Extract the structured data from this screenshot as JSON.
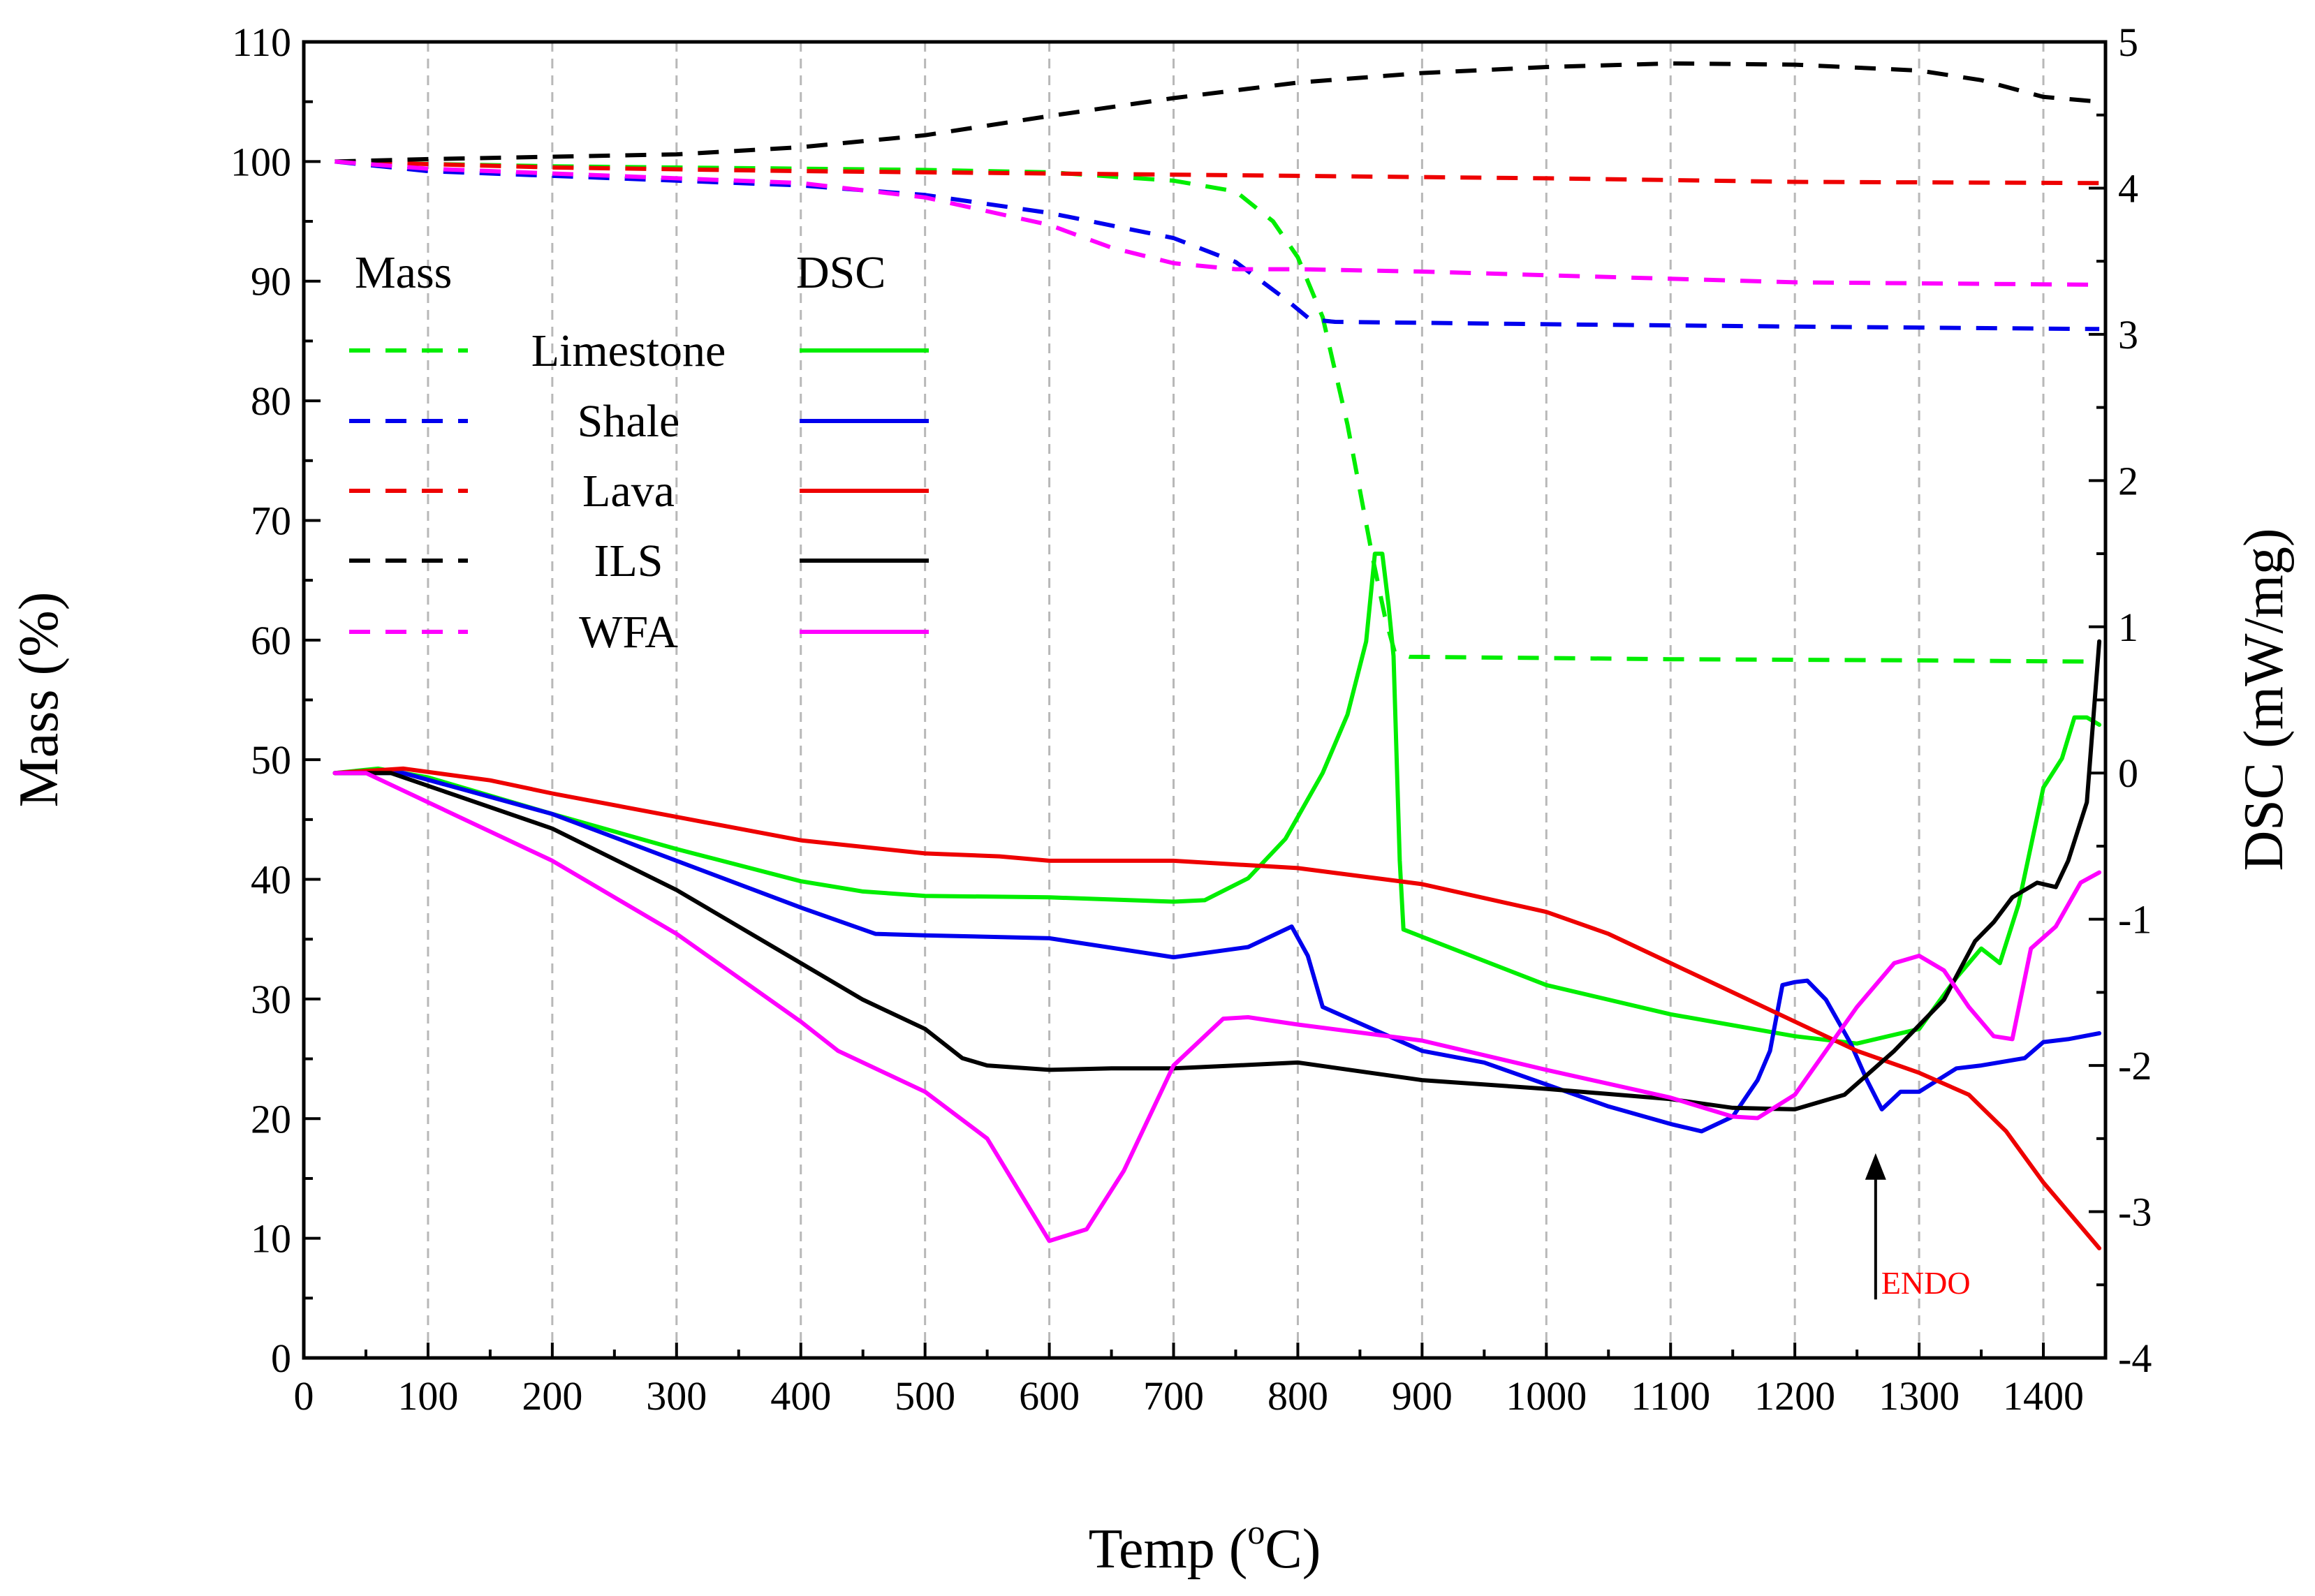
{
  "chart_data": {
    "type": "line",
    "title": "",
    "xlabel": "Temp (",
    "xlabel_sup": "o",
    "xlabel_end": "C)",
    "ylabel_left": "Mass (%)",
    "ylabel_right": "DSC (mW/mg)",
    "xlim": [
      0,
      1450
    ],
    "ylim_left": [
      0,
      110
    ],
    "ylim_right": [
      -4,
      5
    ],
    "x_ticks": [
      0,
      100,
      200,
      300,
      400,
      500,
      600,
      700,
      800,
      900,
      1000,
      1100,
      1200,
      1300,
      1400
    ],
    "x_tick_labels": [
      "0",
      "100",
      "200",
      "300",
      "400",
      "500",
      "600",
      "700",
      "800",
      "900",
      "1000",
      "1100",
      "1200",
      "1300",
      "1400"
    ],
    "y_left_ticks": [
      0,
      10,
      20,
      30,
      40,
      50,
      60,
      70,
      80,
      90,
      100,
      110
    ],
    "y_left_tick_labels": [
      "0",
      "10",
      "20",
      "30",
      "40",
      "50",
      "60",
      "70",
      "80",
      "90",
      "100",
      "110"
    ],
    "y_right_ticks": [
      -4,
      -3,
      -2,
      -1,
      0,
      1,
      2,
      3,
      4,
      5
    ],
    "y_right_tick_labels": [
      "-4",
      "-3",
      "-2",
      "-1",
      "0",
      "1",
      "2",
      "3",
      "4",
      "5"
    ],
    "grid": "vertical dashed",
    "legend": {
      "position": "upper-left",
      "mass_header": "Mass",
      "dsc_header": "DSC",
      "entries": [
        "Limestone",
        "Shale",
        "Lava",
        "ILS",
        "WFA"
      ]
    },
    "annotation": {
      "text": "ENDO",
      "x": 1265,
      "arrow_from_dsc": -3.6,
      "arrow_to_dsc": -2.6,
      "color": "#ff0000"
    },
    "colors": {
      "Limestone": "#00ee00",
      "Shale": "#0000ee",
      "Lava": "#ee0000",
      "ILS": "#000000",
      "WFA": "#ff00ff"
    },
    "series": [
      {
        "name": "Limestone",
        "kind": "Mass",
        "axis": "left",
        "style": "dashed",
        "color": "#00ee00",
        "points": [
          [
            25,
            100
          ],
          [
            100,
            99.8
          ],
          [
            200,
            99.6
          ],
          [
            300,
            99.5
          ],
          [
            400,
            99.4
          ],
          [
            500,
            99.3
          ],
          [
            600,
            99.1
          ],
          [
            700,
            98.4
          ],
          [
            750,
            97.5
          ],
          [
            780,
            95
          ],
          [
            800,
            92
          ],
          [
            820,
            87
          ],
          [
            840,
            78
          ],
          [
            860,
            67
          ],
          [
            870,
            62
          ],
          [
            878,
            59
          ],
          [
            890,
            58.6
          ],
          [
            1000,
            58.5
          ],
          [
            1100,
            58.4
          ],
          [
            1300,
            58.3
          ],
          [
            1445,
            58.2
          ]
        ]
      },
      {
        "name": "Shale",
        "kind": "Mass",
        "axis": "left",
        "style": "dashed",
        "color": "#0000ee",
        "points": [
          [
            25,
            100
          ],
          [
            100,
            99.2
          ],
          [
            200,
            98.8
          ],
          [
            300,
            98.4
          ],
          [
            400,
            98
          ],
          [
            500,
            97.2
          ],
          [
            600,
            95.7
          ],
          [
            700,
            93.6
          ],
          [
            750,
            91.6
          ],
          [
            790,
            88.5
          ],
          [
            810,
            86.8
          ],
          [
            830,
            86.6
          ],
          [
            1000,
            86.4
          ],
          [
            1200,
            86.2
          ],
          [
            1445,
            86
          ]
        ]
      },
      {
        "name": "Lava",
        "kind": "Mass",
        "axis": "left",
        "style": "dashed",
        "color": "#ee0000",
        "points": [
          [
            25,
            100
          ],
          [
            200,
            99.5
          ],
          [
            400,
            99.2
          ],
          [
            600,
            99
          ],
          [
            800,
            98.8
          ],
          [
            1000,
            98.6
          ],
          [
            1200,
            98.3
          ],
          [
            1445,
            98.2
          ]
        ]
      },
      {
        "name": "ILS",
        "kind": "Mass",
        "axis": "left",
        "style": "dashed",
        "color": "#000000",
        "points": [
          [
            25,
            100
          ],
          [
            100,
            100.2
          ],
          [
            200,
            100.4
          ],
          [
            300,
            100.6
          ],
          [
            400,
            101.2
          ],
          [
            500,
            102.2
          ],
          [
            600,
            103.8
          ],
          [
            700,
            105.3
          ],
          [
            800,
            106.6
          ],
          [
            900,
            107.4
          ],
          [
            1000,
            107.9
          ],
          [
            1100,
            108.2
          ],
          [
            1200,
            108.1
          ],
          [
            1300,
            107.6
          ],
          [
            1350,
            106.8
          ],
          [
            1400,
            105.4
          ],
          [
            1445,
            105
          ]
        ]
      },
      {
        "name": "WFA",
        "kind": "Mass",
        "axis": "left",
        "style": "dashed",
        "color": "#ff00ff",
        "points": [
          [
            25,
            100
          ],
          [
            100,
            99.4
          ],
          [
            200,
            99
          ],
          [
            300,
            98.6
          ],
          [
            400,
            98.2
          ],
          [
            500,
            97
          ],
          [
            600,
            94.7
          ],
          [
            650,
            92.8
          ],
          [
            700,
            91.5
          ],
          [
            750,
            91
          ],
          [
            800,
            91
          ],
          [
            900,
            90.8
          ],
          [
            1000,
            90.5
          ],
          [
            1100,
            90.2
          ],
          [
            1200,
            89.9
          ],
          [
            1445,
            89.7
          ]
        ]
      },
      {
        "name": "Limestone",
        "kind": "DSC",
        "axis": "right",
        "style": "solid",
        "color": "#00ee00",
        "points": [
          [
            25,
            0
          ],
          [
            60,
            0.03
          ],
          [
            100,
            -0.03
          ],
          [
            200,
            -0.28
          ],
          [
            300,
            -0.52
          ],
          [
            400,
            -0.74
          ],
          [
            450,
            -0.81
          ],
          [
            500,
            -0.84
          ],
          [
            600,
            -0.85
          ],
          [
            700,
            -0.88
          ],
          [
            725,
            -0.87
          ],
          [
            760,
            -0.72
          ],
          [
            790,
            -0.45
          ],
          [
            820,
            0
          ],
          [
            840,
            0.4
          ],
          [
            855,
            0.9
          ],
          [
            862,
            1.5
          ],
          [
            868,
            1.5
          ],
          [
            873,
            1.15
          ],
          [
            877,
            0.8
          ],
          [
            882,
            -0.6
          ],
          [
            885,
            -1.07
          ],
          [
            900,
            -1.12
          ],
          [
            1000,
            -1.45
          ],
          [
            1100,
            -1.65
          ],
          [
            1200,
            -1.8
          ],
          [
            1250,
            -1.85
          ],
          [
            1300,
            -1.75
          ],
          [
            1330,
            -1.4
          ],
          [
            1350,
            -1.2
          ],
          [
            1365,
            -1.3
          ],
          [
            1380,
            -0.9
          ],
          [
            1400,
            -0.1
          ],
          [
            1415,
            0.1
          ],
          [
            1425,
            0.38
          ],
          [
            1435,
            0.38
          ],
          [
            1445,
            0.33
          ]
        ]
      },
      {
        "name": "Shale",
        "kind": "DSC",
        "axis": "right",
        "style": "solid",
        "color": "#0000ee",
        "points": [
          [
            25,
            0
          ],
          [
            80,
            0
          ],
          [
            200,
            -0.28
          ],
          [
            300,
            -0.6
          ],
          [
            400,
            -0.92
          ],
          [
            460,
            -1.1
          ],
          [
            500,
            -1.11
          ],
          [
            600,
            -1.13
          ],
          [
            700,
            -1.26
          ],
          [
            760,
            -1.19
          ],
          [
            795,
            -1.05
          ],
          [
            808,
            -1.25
          ],
          [
            820,
            -1.6
          ],
          [
            900,
            -1.9
          ],
          [
            950,
            -1.98
          ],
          [
            1000,
            -2.13
          ],
          [
            1050,
            -2.28
          ],
          [
            1100,
            -2.4
          ],
          [
            1125,
            -2.45
          ],
          [
            1150,
            -2.35
          ],
          [
            1170,
            -2.1
          ],
          [
            1180,
            -1.9
          ],
          [
            1190,
            -1.45
          ],
          [
            1200,
            -1.43
          ],
          [
            1210,
            -1.42
          ],
          [
            1225,
            -1.55
          ],
          [
            1245,
            -1.85
          ],
          [
            1258,
            -2.1
          ],
          [
            1270,
            -2.3
          ],
          [
            1285,
            -2.18
          ],
          [
            1300,
            -2.18
          ],
          [
            1330,
            -2.02
          ],
          [
            1350,
            -2.0
          ],
          [
            1385,
            -1.95
          ],
          [
            1400,
            -1.84
          ],
          [
            1420,
            -1.82
          ],
          [
            1445,
            -1.78
          ]
        ]
      },
      {
        "name": "Lava",
        "kind": "DSC",
        "axis": "right",
        "style": "solid",
        "color": "#ee0000",
        "points": [
          [
            25,
            0
          ],
          [
            80,
            0.03
          ],
          [
            150,
            -0.05
          ],
          [
            200,
            -0.14
          ],
          [
            300,
            -0.3
          ],
          [
            400,
            -0.46
          ],
          [
            500,
            -0.55
          ],
          [
            560,
            -0.57
          ],
          [
            600,
            -0.6
          ],
          [
            700,
            -0.6
          ],
          [
            800,
            -0.65
          ],
          [
            900,
            -0.76
          ],
          [
            1000,
            -0.95
          ],
          [
            1050,
            -1.1
          ],
          [
            1100,
            -1.3
          ],
          [
            1150,
            -1.5
          ],
          [
            1200,
            -1.7
          ],
          [
            1250,
            -1.9
          ],
          [
            1300,
            -2.05
          ],
          [
            1340,
            -2.2
          ],
          [
            1370,
            -2.45
          ],
          [
            1400,
            -2.8
          ],
          [
            1445,
            -3.25
          ]
        ]
      },
      {
        "name": "ILS",
        "kind": "DSC",
        "axis": "right",
        "style": "solid",
        "color": "#000000",
        "points": [
          [
            25,
            0
          ],
          [
            70,
            0
          ],
          [
            200,
            -0.38
          ],
          [
            300,
            -0.8
          ],
          [
            400,
            -1.3
          ],
          [
            450,
            -1.55
          ],
          [
            500,
            -1.75
          ],
          [
            530,
            -1.95
          ],
          [
            550,
            -2.0
          ],
          [
            600,
            -2.03
          ],
          [
            650,
            -2.02
          ],
          [
            700,
            -2.02
          ],
          [
            750,
            -2.0
          ],
          [
            800,
            -1.98
          ],
          [
            900,
            -2.1
          ],
          [
            1000,
            -2.16
          ],
          [
            1100,
            -2.23
          ],
          [
            1150,
            -2.29
          ],
          [
            1200,
            -2.3
          ],
          [
            1240,
            -2.2
          ],
          [
            1280,
            -1.9
          ],
          [
            1320,
            -1.55
          ],
          [
            1345,
            -1.15
          ],
          [
            1360,
            -1.02
          ],
          [
            1375,
            -0.85
          ],
          [
            1395,
            -0.75
          ],
          [
            1410,
            -0.78
          ],
          [
            1420,
            -0.6
          ],
          [
            1435,
            -0.2
          ],
          [
            1445,
            0.9
          ]
        ]
      },
      {
        "name": "WFA",
        "kind": "DSC",
        "axis": "right",
        "style": "solid",
        "color": "#ff00ff",
        "points": [
          [
            25,
            0
          ],
          [
            50,
            0
          ],
          [
            100,
            -0.2
          ],
          [
            200,
            -0.6
          ],
          [
            300,
            -1.1
          ],
          [
            350,
            -1.4
          ],
          [
            400,
            -1.7
          ],
          [
            430,
            -1.9
          ],
          [
            500,
            -2.18
          ],
          [
            550,
            -2.5
          ],
          [
            600,
            -3.2
          ],
          [
            630,
            -3.12
          ],
          [
            660,
            -2.72
          ],
          [
            700,
            -2.0
          ],
          [
            740,
            -1.68
          ],
          [
            760,
            -1.67
          ],
          [
            800,
            -1.72
          ],
          [
            900,
            -1.83
          ],
          [
            1000,
            -2.03
          ],
          [
            1100,
            -2.22
          ],
          [
            1150,
            -2.35
          ],
          [
            1170,
            -2.36
          ],
          [
            1200,
            -2.2
          ],
          [
            1250,
            -1.6
          ],
          [
            1280,
            -1.3
          ],
          [
            1300,
            -1.25
          ],
          [
            1320,
            -1.35
          ],
          [
            1340,
            -1.6
          ],
          [
            1360,
            -1.8
          ],
          [
            1375,
            -1.82
          ],
          [
            1390,
            -1.2
          ],
          [
            1410,
            -1.05
          ],
          [
            1430,
            -0.75
          ],
          [
            1445,
            -0.68
          ]
        ]
      }
    ]
  }
}
